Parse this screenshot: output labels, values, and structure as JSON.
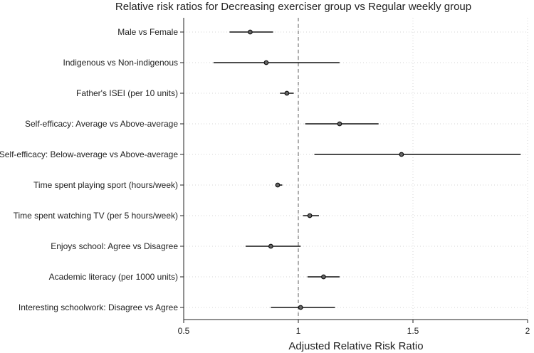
{
  "chart_data": {
    "type": "forest",
    "title": "Relative risk ratios for Decreasing exerciser group vs Regular weekly group",
    "xlabel": "Adjusted Relative Risk Ratio",
    "ylabel": "",
    "xlim": [
      0.5,
      2.0
    ],
    "xticks": [
      0.5,
      1,
      1.5,
      2
    ],
    "xtick_labels": [
      "0.5",
      "1",
      "1.5",
      "2"
    ],
    "reference_line": 1,
    "grid": true,
    "categories": [
      "Male vs Female",
      "Indigenous vs Non-indigenous",
      "Father's ISEI (per 10 units)",
      "Self-efficacy: Average vs Above-average",
      "Self-efficacy: Below-average vs Above-average",
      "Time spent playing sport (hours/week)",
      "Time spent watching TV (per 5 hours/week)",
      "Enjoys school: Agree vs Disagree",
      "Academic literacy (per 1000 units)",
      "Interesting schoolwork: Disagree vs Agree"
    ],
    "estimates": [
      0.79,
      0.86,
      0.95,
      1.18,
      1.45,
      0.91,
      1.05,
      0.88,
      1.11,
      1.01
    ],
    "ci_lower": [
      0.7,
      0.63,
      0.92,
      1.03,
      1.07,
      0.9,
      1.02,
      0.77,
      1.04,
      0.88
    ],
    "ci_upper": [
      0.89,
      1.18,
      0.98,
      1.35,
      1.97,
      0.93,
      1.09,
      1.01,
      1.18,
      1.16
    ]
  }
}
